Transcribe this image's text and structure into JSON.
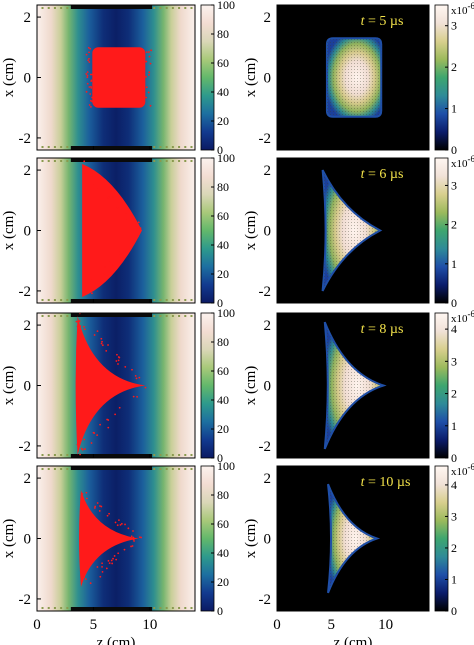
{
  "colors": {
    "particle_red": "#ff1a1a",
    "time_label": "#f2e24a",
    "left_colormap": [
      "#0b1a63",
      "#123a8f",
      "#1d6fa0",
      "#2e9a8c",
      "#63b86b",
      "#a9c97a",
      "#dad7b8",
      "#f3ddd3",
      "#fbf2ee"
    ],
    "right_colormap": [
      "#000000",
      "#0b1c6b",
      "#1f4fa8",
      "#2f8b98",
      "#3ea66f",
      "#9cba5c",
      "#d8cf8e",
      "#f1e2d8",
      "#fff7f2"
    ]
  },
  "axis_labels": {
    "z": "z (cm)",
    "x": "x (cm)"
  },
  "chart_data": [
    {
      "type": "heatmap",
      "row": 1,
      "column": "left",
      "xlabel": "",
      "ylabel": "x (cm)",
      "xlim": [
        0,
        14
      ],
      "ylim": [
        -2.4,
        2.4
      ],
      "x_ticks": [
        "0",
        "5",
        "10"
      ],
      "y_ticks": [
        "2",
        "0",
        "-2"
      ],
      "colorbar": {
        "range": [
          0,
          100
        ],
        "ticks": [
          "0",
          "20",
          "40",
          "60",
          "80",
          "100"
        ]
      },
      "particle_shape": "rectangle",
      "particle_z_range": [
        4.9,
        9.6
      ],
      "particle_x_range": [
        -1.0,
        1.0
      ]
    },
    {
      "type": "heatmap",
      "row": 1,
      "column": "right",
      "xlabel": "",
      "ylabel": "x (cm)",
      "xlim": [
        0,
        14
      ],
      "ylim": [
        -2.4,
        2.4
      ],
      "x_ticks": [
        "0",
        "5",
        "10"
      ],
      "y_ticks": [
        "2",
        "0",
        "-2"
      ],
      "colorbar": {
        "range": [
          0,
          3.5
        ],
        "ticks": [
          "0",
          "1",
          "2",
          "3"
        ],
        "multiplier": "x10",
        "exponent": "-6"
      },
      "annotation": {
        "prefix": "t",
        "text": " = 5 µs"
      }
    },
    {
      "type": "heatmap",
      "row": 2,
      "column": "left",
      "xlabel": "",
      "ylabel": "x (cm)",
      "xlim": [
        0,
        14
      ],
      "ylim": [
        -2.4,
        2.4
      ],
      "x_ticks": [
        "0",
        "5",
        "10"
      ],
      "y_ticks": [
        "2",
        "0",
        "-2"
      ],
      "colorbar": {
        "range": [
          0,
          100
        ],
        "ticks": [
          "0",
          "20",
          "40",
          "60",
          "80",
          "100"
        ]
      },
      "particle_shape": "triangle",
      "particle_tip_z": 9.3,
      "particle_base_z": 4.0,
      "particle_base_halfwidth": 2.2
    },
    {
      "type": "heatmap",
      "row": 2,
      "column": "right",
      "xlabel": "",
      "ylabel": "x (cm)",
      "xlim": [
        0,
        14
      ],
      "ylim": [
        -2.4,
        2.4
      ],
      "x_ticks": [
        "0",
        "5",
        "10"
      ],
      "y_ticks": [
        "2",
        "0",
        "-2"
      ],
      "colorbar": {
        "range": [
          0,
          3.7
        ],
        "ticks": [
          "0",
          "1",
          "2",
          "3"
        ],
        "multiplier": "x10",
        "exponent": "-6"
      },
      "annotation": {
        "prefix": "t",
        "text": " = 6 µs"
      }
    },
    {
      "type": "heatmap",
      "row": 3,
      "column": "left",
      "xlabel": "",
      "ylabel": "x (cm)",
      "xlim": [
        0,
        14
      ],
      "ylim": [
        -2.4,
        2.4
      ],
      "x_ticks": [
        "0",
        "5",
        "10"
      ],
      "y_ticks": [
        "2",
        "0",
        "-2"
      ],
      "colorbar": {
        "range": [
          0,
          100
        ],
        "ticks": [
          "0",
          "20",
          "40",
          "60",
          "80",
          "100"
        ]
      },
      "particle_shape": "concave",
      "particle_tip_z": 9.6,
      "particle_base_z": 3.6,
      "particle_base_halfwidth": 2.3
    },
    {
      "type": "heatmap",
      "row": 3,
      "column": "right",
      "xlabel": "",
      "ylabel": "x (cm)",
      "xlim": [
        0,
        14
      ],
      "ylim": [
        -2.4,
        2.4
      ],
      "x_ticks": [
        "0",
        "5",
        "10"
      ],
      "y_ticks": [
        "2",
        "0",
        "-2"
      ],
      "colorbar": {
        "range": [
          0,
          4.5
        ],
        "ticks": [
          "0",
          "1",
          "2",
          "3",
          "4"
        ],
        "multiplier": "x10",
        "exponent": "-6"
      },
      "annotation": {
        "prefix": "t",
        "text": " = 8 µs"
      }
    },
    {
      "type": "heatmap",
      "row": 4,
      "column": "left",
      "xlabel": "z (cm)",
      "ylabel": "x (cm)",
      "xlim": [
        0,
        14
      ],
      "ylim": [
        -2.4,
        2.4
      ],
      "x_ticks": [
        "0",
        "5",
        "10"
      ],
      "y_ticks": [
        "2",
        "0",
        "-2"
      ],
      "colorbar": {
        "range": [
          0,
          100
        ],
        "ticks": [
          "0",
          "20",
          "40",
          "60",
          "80",
          "100"
        ]
      },
      "particle_shape": "concave",
      "particle_tip_z": 9.0,
      "particle_base_z": 3.9,
      "particle_base_halfwidth": 1.6
    },
    {
      "type": "heatmap",
      "row": 4,
      "column": "right",
      "xlabel": "z (cm)",
      "ylabel": "x (cm)",
      "xlim": [
        0,
        14
      ],
      "ylim": [
        -2.4,
        2.4
      ],
      "x_ticks": [
        "0",
        "5",
        "10"
      ],
      "y_ticks": [
        "2",
        "0",
        "-2"
      ],
      "colorbar": {
        "range": [
          0,
          4.6
        ],
        "ticks": [
          "0",
          "1",
          "2",
          "3",
          "4"
        ],
        "multiplier": "x10",
        "exponent": "-6"
      },
      "annotation": {
        "prefix": "t",
        "text": " = 10 µs"
      }
    }
  ]
}
